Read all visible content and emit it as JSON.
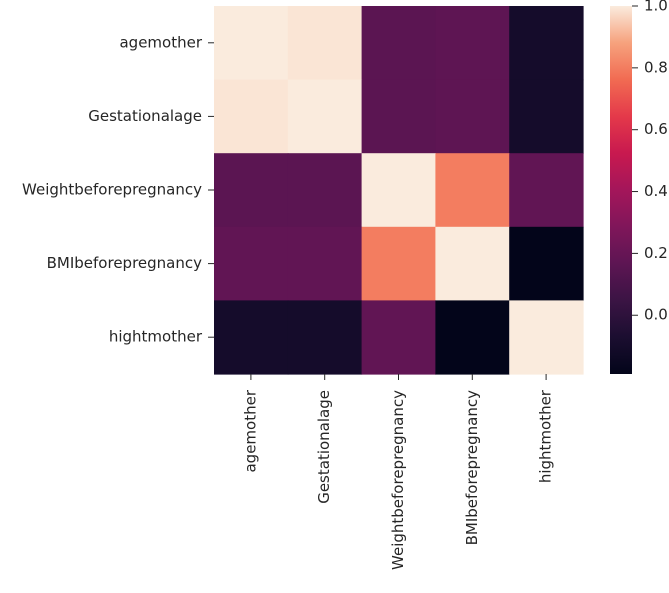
{
  "chart_data": {
    "type": "heatmap",
    "title": "",
    "xlabel": "",
    "ylabel": "",
    "x_categories": [
      "agemother",
      "Gestationalage",
      "Weightbeforepregnancy",
      "BMIbeforepregnancy",
      "hightmother"
    ],
    "y_categories": [
      "agemother",
      "Gestationalage",
      "Weightbeforepregnancy",
      "BMIbeforepregnancy",
      "hightmother"
    ],
    "values": [
      [
        1.0,
        0.99,
        0.16,
        0.17,
        -0.1
      ],
      [
        0.99,
        1.0,
        0.16,
        0.17,
        -0.1
      ],
      [
        0.16,
        0.16,
        1.0,
        0.8,
        0.18
      ],
      [
        0.18,
        0.18,
        0.8,
        1.0,
        -0.19
      ],
      [
        -0.1,
        -0.1,
        0.18,
        -0.19,
        1.0
      ]
    ],
    "colorbar": {
      "vmin": -0.19,
      "vmax": 1.0,
      "ticks": [
        1.0,
        0.8,
        0.6,
        0.4,
        0.2,
        0.0
      ],
      "tick_labels": [
        "1.0",
        "0.8",
        "0.6",
        "0.4",
        "0.2",
        "0.0"
      ],
      "colormap": "rocket"
    }
  }
}
